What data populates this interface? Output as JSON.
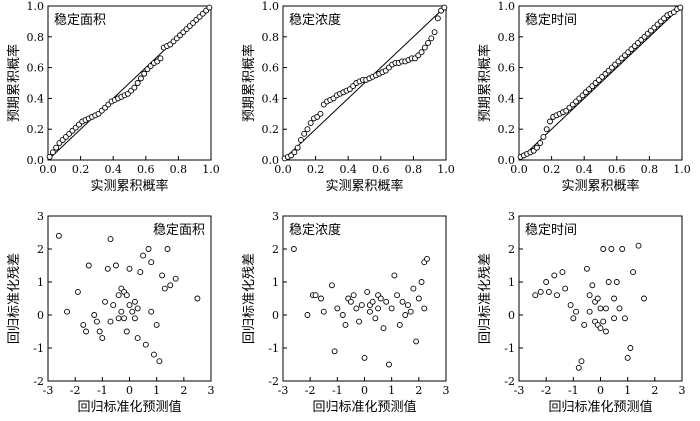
{
  "chart_data": [
    {
      "id": "pp-area",
      "type": "scatter",
      "row": 0,
      "col": 0,
      "title": "稳定面积",
      "title_pos": "top-left",
      "xlabel": "实测累积概率",
      "ylabel": "预期累积概率",
      "xlim": [
        0,
        1
      ],
      "ylim": [
        0,
        1
      ],
      "xticks": [
        "0.0",
        "0.2",
        "0.4",
        "0.6",
        "0.8",
        "1.0"
      ],
      "yticks": [
        "0.0",
        "0.2",
        "0.4",
        "0.6",
        "0.8",
        "1.0"
      ],
      "reference_line": true,
      "x": [
        0.01,
        0.03,
        0.05,
        0.07,
        0.09,
        0.11,
        0.13,
        0.15,
        0.17,
        0.19,
        0.21,
        0.23,
        0.25,
        0.27,
        0.29,
        0.31,
        0.33,
        0.35,
        0.37,
        0.39,
        0.41,
        0.43,
        0.45,
        0.47,
        0.49,
        0.51,
        0.53,
        0.55,
        0.57,
        0.59,
        0.61,
        0.63,
        0.65,
        0.67,
        0.69,
        0.71,
        0.73,
        0.75,
        0.77,
        0.79,
        0.81,
        0.83,
        0.85,
        0.87,
        0.89,
        0.91,
        0.93,
        0.95,
        0.97,
        0.99
      ],
      "y": [
        0.02,
        0.05,
        0.08,
        0.11,
        0.13,
        0.15,
        0.17,
        0.19,
        0.21,
        0.23,
        0.25,
        0.26,
        0.27,
        0.28,
        0.29,
        0.3,
        0.32,
        0.34,
        0.36,
        0.38,
        0.39,
        0.4,
        0.41,
        0.42,
        0.43,
        0.45,
        0.47,
        0.5,
        0.53,
        0.56,
        0.59,
        0.61,
        0.63,
        0.64,
        0.66,
        0.73,
        0.74,
        0.75,
        0.77,
        0.79,
        0.81,
        0.83,
        0.85,
        0.87,
        0.89,
        0.91,
        0.93,
        0.95,
        0.97,
        0.99
      ]
    },
    {
      "id": "pp-concentration",
      "type": "scatter",
      "row": 0,
      "col": 1,
      "title": "稳定浓度",
      "title_pos": "top-left",
      "xlabel": "实测累积概率",
      "ylabel": "预期累积概率",
      "xlim": [
        0,
        1
      ],
      "ylim": [
        0,
        1
      ],
      "xticks": [
        "0.0",
        "0.2",
        "0.4",
        "0.6",
        "0.8",
        "1.0"
      ],
      "yticks": [
        "0.0",
        "0.2",
        "0.4",
        "0.6",
        "0.8",
        "1.0"
      ],
      "reference_line": true,
      "x": [
        0.01,
        0.03,
        0.05,
        0.07,
        0.09,
        0.11,
        0.13,
        0.15,
        0.17,
        0.19,
        0.21,
        0.23,
        0.25,
        0.27,
        0.29,
        0.31,
        0.33,
        0.35,
        0.37,
        0.39,
        0.41,
        0.43,
        0.45,
        0.47,
        0.49,
        0.51,
        0.53,
        0.55,
        0.57,
        0.59,
        0.61,
        0.63,
        0.65,
        0.67,
        0.69,
        0.71,
        0.73,
        0.75,
        0.77,
        0.79,
        0.81,
        0.83,
        0.85,
        0.87,
        0.89,
        0.91,
        0.93,
        0.95,
        0.97,
        0.99
      ],
      "y": [
        0.01,
        0.02,
        0.03,
        0.05,
        0.08,
        0.13,
        0.17,
        0.2,
        0.24,
        0.27,
        0.28,
        0.3,
        0.36,
        0.38,
        0.39,
        0.4,
        0.42,
        0.43,
        0.44,
        0.45,
        0.46,
        0.48,
        0.5,
        0.51,
        0.52,
        0.52,
        0.53,
        0.54,
        0.55,
        0.56,
        0.57,
        0.58,
        0.6,
        0.62,
        0.63,
        0.63,
        0.64,
        0.64,
        0.65,
        0.66,
        0.66,
        0.68,
        0.7,
        0.73,
        0.76,
        0.79,
        0.83,
        0.92,
        0.97,
        0.99
      ]
    },
    {
      "id": "pp-time",
      "type": "scatter",
      "row": 0,
      "col": 2,
      "title": "稳定时间",
      "title_pos": "top-left",
      "xlabel": "实测累积概率",
      "ylabel": "预期累积概率",
      "xlim": [
        0,
        1
      ],
      "ylim": [
        0,
        1
      ],
      "xticks": [
        "0.0",
        "0.2",
        "0.4",
        "0.6",
        "0.8",
        "1.0"
      ],
      "yticks": [
        "0.0",
        "0.2",
        "0.4",
        "0.6",
        "0.8",
        "1.0"
      ],
      "reference_line": true,
      "x": [
        0.01,
        0.03,
        0.05,
        0.07,
        0.09,
        0.11,
        0.13,
        0.15,
        0.17,
        0.19,
        0.21,
        0.23,
        0.25,
        0.27,
        0.29,
        0.31,
        0.33,
        0.35,
        0.37,
        0.39,
        0.41,
        0.43,
        0.45,
        0.47,
        0.49,
        0.51,
        0.53,
        0.55,
        0.57,
        0.59,
        0.61,
        0.63,
        0.65,
        0.67,
        0.69,
        0.71,
        0.73,
        0.75,
        0.77,
        0.79,
        0.81,
        0.83,
        0.85,
        0.87,
        0.89,
        0.91,
        0.93,
        0.95,
        0.97,
        0.99
      ],
      "y": [
        0.02,
        0.03,
        0.04,
        0.05,
        0.06,
        0.08,
        0.11,
        0.15,
        0.2,
        0.25,
        0.28,
        0.29,
        0.3,
        0.31,
        0.32,
        0.34,
        0.36,
        0.38,
        0.4,
        0.42,
        0.44,
        0.46,
        0.48,
        0.5,
        0.52,
        0.54,
        0.56,
        0.58,
        0.6,
        0.62,
        0.64,
        0.66,
        0.68,
        0.7,
        0.72,
        0.74,
        0.76,
        0.78,
        0.8,
        0.82,
        0.84,
        0.86,
        0.88,
        0.9,
        0.92,
        0.94,
        0.95,
        0.96,
        0.98,
        0.99
      ]
    },
    {
      "id": "res-area",
      "type": "scatter",
      "row": 1,
      "col": 0,
      "title": "稳定面积",
      "title_pos": "top-right",
      "xlabel": "回归标准化预测值",
      "ylabel": "回归标准化残差",
      "xlim": [
        -3,
        3
      ],
      "ylim": [
        -2,
        3
      ],
      "xticks": [
        "-3",
        "-2",
        "-1",
        "0",
        "1",
        "2",
        "3"
      ],
      "yticks": [
        "-2",
        "-1",
        "0",
        "1",
        "2",
        "3"
      ],
      "reference_line": false,
      "x": [
        -2.6,
        -2.3,
        -1.9,
        -1.7,
        -1.6,
        -1.5,
        -1.3,
        -1.2,
        -1.1,
        -1.0,
        -0.9,
        -0.8,
        -0.7,
        -0.7,
        -0.6,
        -0.5,
        -0.4,
        -0.4,
        -0.3,
        -0.3,
        -0.2,
        -0.2,
        -0.1,
        -0.1,
        0.0,
        0.0,
        0.1,
        0.2,
        0.2,
        0.3,
        0.3,
        0.4,
        0.5,
        0.6,
        0.7,
        0.8,
        0.8,
        0.9,
        1.0,
        1.1,
        1.2,
        1.3,
        1.4,
        1.5,
        1.7,
        2.5
      ],
      "y": [
        2.4,
        0.1,
        0.7,
        -0.3,
        -0.5,
        1.5,
        0.0,
        -0.2,
        -0.5,
        -0.7,
        0.4,
        1.4,
        2.3,
        -0.2,
        0.3,
        1.5,
        0.6,
        -0.1,
        0.8,
        0.1,
        -0.1,
        0.7,
        0.6,
        -0.5,
        1.4,
        0.3,
        0.1,
        -0.1,
        0.4,
        0.2,
        -0.7,
        1.3,
        1.8,
        -0.9,
        2.0,
        0.1,
        1.6,
        -1.2,
        -0.3,
        -1.4,
        1.2,
        0.8,
        2.0,
        0.9,
        1.1,
        0.5
      ]
    },
    {
      "id": "res-concentration",
      "type": "scatter",
      "row": 1,
      "col": 1,
      "title": "稳定浓度",
      "title_pos": "top-left",
      "xlabel": "回归标准化预测值",
      "ylabel": "回归标准化残差",
      "xlim": [
        -3,
        3
      ],
      "ylim": [
        -2,
        3
      ],
      "xticks": [
        "-3",
        "-2",
        "-1",
        "0",
        "1",
        "2",
        "3"
      ],
      "yticks": [
        "-2",
        "-1",
        "0",
        "1",
        "2",
        "3"
      ],
      "reference_line": false,
      "x": [
        -2.6,
        -2.1,
        -1.9,
        -1.8,
        -1.6,
        -1.5,
        -1.2,
        -1.1,
        -1.0,
        -0.8,
        -0.7,
        -0.6,
        -0.5,
        -0.4,
        -0.3,
        -0.2,
        -0.1,
        0.0,
        0.1,
        0.2,
        0.2,
        0.3,
        0.4,
        0.5,
        0.5,
        0.6,
        0.7,
        0.8,
        0.9,
        1.0,
        1.1,
        1.2,
        1.3,
        1.4,
        1.5,
        1.6,
        1.7,
        1.8,
        1.9,
        2.0,
        2.1,
        2.2,
        2.2,
        2.3
      ],
      "y": [
        2.0,
        0.0,
        0.6,
        0.6,
        0.5,
        0.1,
        0.9,
        -1.1,
        0.2,
        0.0,
        -0.3,
        0.5,
        0.4,
        0.6,
        0.2,
        -0.2,
        0.3,
        -1.3,
        0.7,
        0.3,
        0.1,
        0.4,
        -0.1,
        0.6,
        0.2,
        0.5,
        -0.4,
        0.4,
        -1.5,
        0.2,
        1.2,
        0.6,
        -0.3,
        0.4,
        0.0,
        0.3,
        0.1,
        0.8,
        -0.8,
        0.5,
        1.0,
        0.2,
        1.6,
        1.7
      ]
    },
    {
      "id": "res-time",
      "type": "scatter",
      "row": 1,
      "col": 2,
      "title": "稳定时间",
      "title_pos": "top-left",
      "xlabel": "回归标准化预测值",
      "ylabel": "回归标准化残差",
      "xlim": [
        -3,
        3
      ],
      "ylim": [
        -2,
        3
      ],
      "xticks": [
        "-3",
        "-2",
        "-1",
        "0",
        "1",
        "2",
        "3"
      ],
      "yticks": [
        "-2",
        "-1",
        "0",
        "1",
        "2",
        "3"
      ],
      "reference_line": false,
      "x": [
        -2.4,
        -2.2,
        -2.0,
        -1.9,
        -1.7,
        -1.6,
        -1.4,
        -1.3,
        -1.1,
        -1.0,
        -0.9,
        -0.8,
        -0.7,
        -0.6,
        -0.5,
        -0.4,
        -0.4,
        -0.3,
        -0.2,
        -0.2,
        -0.1,
        -0.1,
        0.0,
        0.0,
        0.1,
        0.1,
        0.2,
        0.2,
        0.3,
        0.4,
        0.5,
        0.5,
        0.6,
        0.7,
        0.8,
        0.9,
        1.0,
        1.1,
        1.2,
        1.4,
        1.6
      ],
      "y": [
        0.6,
        0.7,
        1.0,
        0.7,
        1.2,
        0.6,
        1.3,
        0.8,
        0.3,
        -0.1,
        0.1,
        -1.6,
        -1.4,
        -0.3,
        1.4,
        0.6,
        0.1,
        0.9,
        -0.2,
        0.4,
        -0.3,
        0.5,
        -0.4,
        0.2,
        -0.2,
        2.0,
        -0.5,
        0.2,
        1.0,
        2.0,
        0.5,
        -0.1,
        1.0,
        0.2,
        2.0,
        -0.1,
        -1.3,
        -1.0,
        1.3,
        2.1,
        0.5
      ]
    }
  ]
}
